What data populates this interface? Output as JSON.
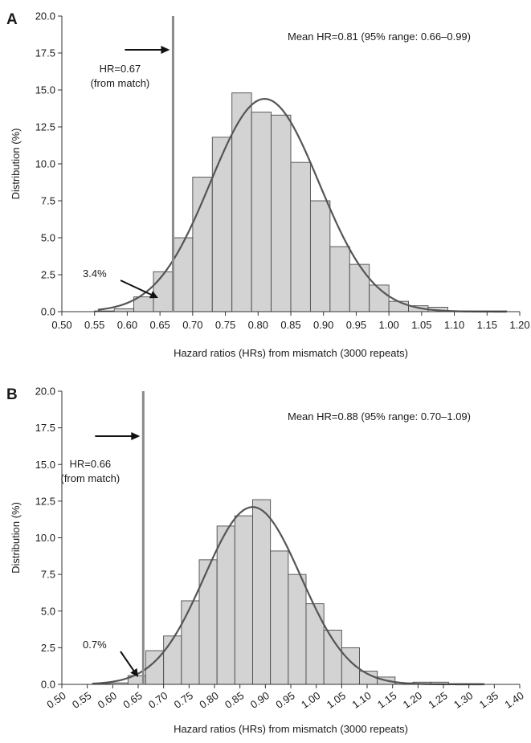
{
  "chart_data": [
    {
      "panel": "A",
      "type": "bar",
      "xlabel": "Hazard ratios (HRs) from mismatch (3000 repeats)",
      "ylabel": "Distribution (%)",
      "xlim": [
        0.5,
        1.2
      ],
      "ylim": [
        0,
        20
      ],
      "xticks": [
        "0.50",
        "0.55",
        "0.60",
        "0.65",
        "0.70",
        "0.75",
        "0.80",
        "0.85",
        "0.90",
        "0.95",
        "1.00",
        "1.05",
        "1.10",
        "1.15",
        "1.20"
      ],
      "yticks": [
        "0.0",
        "2.5",
        "5.0",
        "7.5",
        "10.0",
        "12.5",
        "15.0",
        "17.5",
        "20.0"
      ],
      "bin_width": 0.03,
      "bin_starts": [
        0.55,
        0.58,
        0.61,
        0.64,
        0.67,
        0.7,
        0.73,
        0.76,
        0.79,
        0.82,
        0.85,
        0.88,
        0.91,
        0.94,
        0.97,
        1.0,
        1.03,
        1.06,
        1.09,
        1.12,
        1.15
      ],
      "values": [
        0.05,
        0.2,
        1.0,
        2.7,
        5.0,
        9.1,
        11.8,
        14.8,
        13.5,
        13.3,
        10.1,
        7.5,
        4.4,
        3.2,
        1.8,
        0.7,
        0.4,
        0.3,
        0.05,
        0.05,
        0.05
      ],
      "curve_mean": 0.81,
      "curve_sd": 0.083,
      "curve_peak": 14.4,
      "curve_range": [
        0.555,
        1.18
      ],
      "ref_x": 0.67,
      "ref_label": [
        "HR=0.67",
        "(from match)"
      ],
      "pct_annotation": "3.4%",
      "mean_annotation": "Mean HR=0.81 (95% range: 0.66–0.99)"
    },
    {
      "panel": "B",
      "type": "bar",
      "xlabel": "Hazard ratios (HRs) from mismatch (3000 repeats)",
      "ylabel": "Distribution (%)",
      "xlim": [
        0.5,
        1.4
      ],
      "ylim": [
        0,
        20
      ],
      "xticks": [
        "0.50",
        "0.55",
        "0.60",
        "0.65",
        "0.70",
        "0.75",
        "0.80",
        "0.85",
        "0.90",
        "0.95",
        "1.00",
        "1.05",
        "1.10",
        "1.15",
        "1.20",
        "1.25",
        "1.30",
        "1.35",
        "1.40"
      ],
      "yticks": [
        "0.0",
        "2.5",
        "5.0",
        "7.5",
        "10.0",
        "12.5",
        "15.0",
        "17.5",
        "20.0"
      ],
      "bin_width": 0.035,
      "bin_starts": [
        0.56,
        0.595,
        0.63,
        0.665,
        0.7,
        0.735,
        0.77,
        0.805,
        0.84,
        0.875,
        0.91,
        0.945,
        0.98,
        1.015,
        1.05,
        1.085,
        1.12,
        1.155,
        1.19,
        1.225,
        1.26,
        1.295
      ],
      "values": [
        0.05,
        0.1,
        0.6,
        2.3,
        3.3,
        5.7,
        8.5,
        10.8,
        11.5,
        12.6,
        9.1,
        7.5,
        5.5,
        3.7,
        2.5,
        0.9,
        0.5,
        0.1,
        0.15,
        0.15,
        0.05,
        0.05
      ],
      "curve_mean": 0.875,
      "curve_sd": 0.095,
      "curve_peak": 12.1,
      "curve_range": [
        0.56,
        1.33
      ],
      "ref_x": 0.66,
      "ref_label": [
        "HR=0.66",
        "(from match)"
      ],
      "pct_annotation": "0.7%",
      "mean_annotation": "Mean HR=0.88 (95% range: 0.70–1.09)"
    }
  ]
}
